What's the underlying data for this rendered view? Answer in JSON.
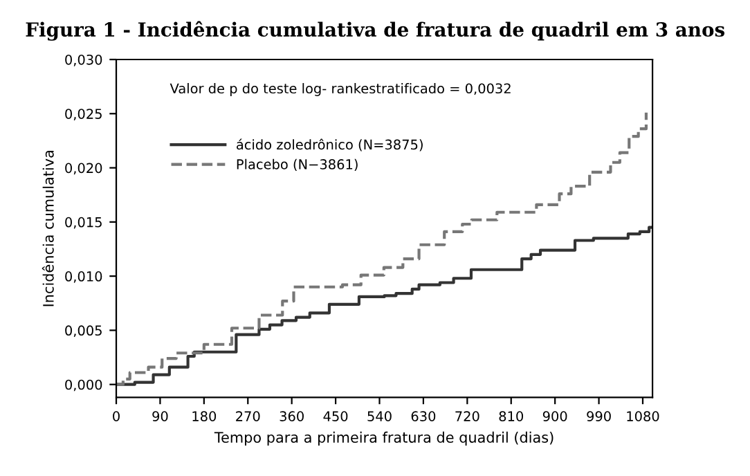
{
  "chart_data": {
    "type": "step",
    "title": "Figura 1 - Incidência cumulativa de fratura de quadril em 3 anos",
    "xlabel": "Tempo para a primeira fratura de quadril (dias)",
    "ylabel": "Incidência cumulativa",
    "annotations": [
      "Valor de p do teste log- rankestratificado = 0,0032"
    ],
    "series": [
      {
        "name": "ácido zoledrônico (N=3875)",
        "color": "#333333",
        "line_style": "solid",
        "x": [
          0,
          24,
          38,
          76,
          109,
          147,
          160,
          246,
          293,
          315,
          340,
          369,
          397,
          437,
          498,
          550,
          574,
          607,
          621,
          664,
          692,
          728,
          832,
          851,
          870,
          941,
          979,
          1050,
          1074,
          1093,
          1100
        ],
        "values": [
          0,
          0,
          0.0002,
          0.0009,
          0.0016,
          0.0026,
          0.003,
          0.0046,
          0.0051,
          0.0055,
          0.0059,
          0.0062,
          0.0066,
          0.0074,
          0.0081,
          0.0082,
          0.0084,
          0.0088,
          0.0092,
          0.0094,
          0.0098,
          0.0106,
          0.0116,
          0.012,
          0.0124,
          0.0133,
          0.0135,
          0.0139,
          0.0141,
          0.0145,
          0.0145
        ]
      },
      {
        "name": "Placebo (N−3861)",
        "color": "#777777",
        "line_style": "dashed",
        "x": [
          0,
          14,
          28,
          66,
          94,
          123,
          180,
          237,
          293,
          341,
          364,
          426,
          464,
          502,
          549,
          588,
          621,
          649,
          673,
          710,
          729,
          781,
          862,
          909,
          933,
          971,
          1014,
          1033,
          1052,
          1071,
          1087
        ],
        "values": [
          0,
          0.0005,
          0.0011,
          0.0016,
          0.0024,
          0.0029,
          0.0037,
          0.0052,
          0.0064,
          0.0077,
          0.009,
          0.009,
          0.0092,
          0.0101,
          0.0108,
          0.0116,
          0.0129,
          0.0129,
          0.0141,
          0.0148,
          0.0152,
          0.0159,
          0.0166,
          0.0176,
          0.0183,
          0.0196,
          0.0205,
          0.0214,
          0.0229,
          0.0236,
          0.0251
        ]
      }
    ],
    "xlim": [
      0,
      1100
    ],
    "xticks": [
      0,
      90,
      180,
      270,
      360,
      450,
      540,
      630,
      720,
      810,
      900,
      990,
      1080
    ],
    "ylim": [
      -0.0012,
      0.03
    ],
    "yticks": [
      {
        "value": 0,
        "label": "0,000"
      },
      {
        "value": 0.005,
        "label": "0,005"
      },
      {
        "value": 0.01,
        "label": "0,010"
      },
      {
        "value": 0.015,
        "label": "0,015"
      },
      {
        "value": 0.02,
        "label": "0,020"
      },
      {
        "value": 0.025,
        "label": "0,025"
      },
      {
        "value": 0.03,
        "label": "0,030"
      }
    ],
    "grid": false,
    "legend": "top left"
  }
}
